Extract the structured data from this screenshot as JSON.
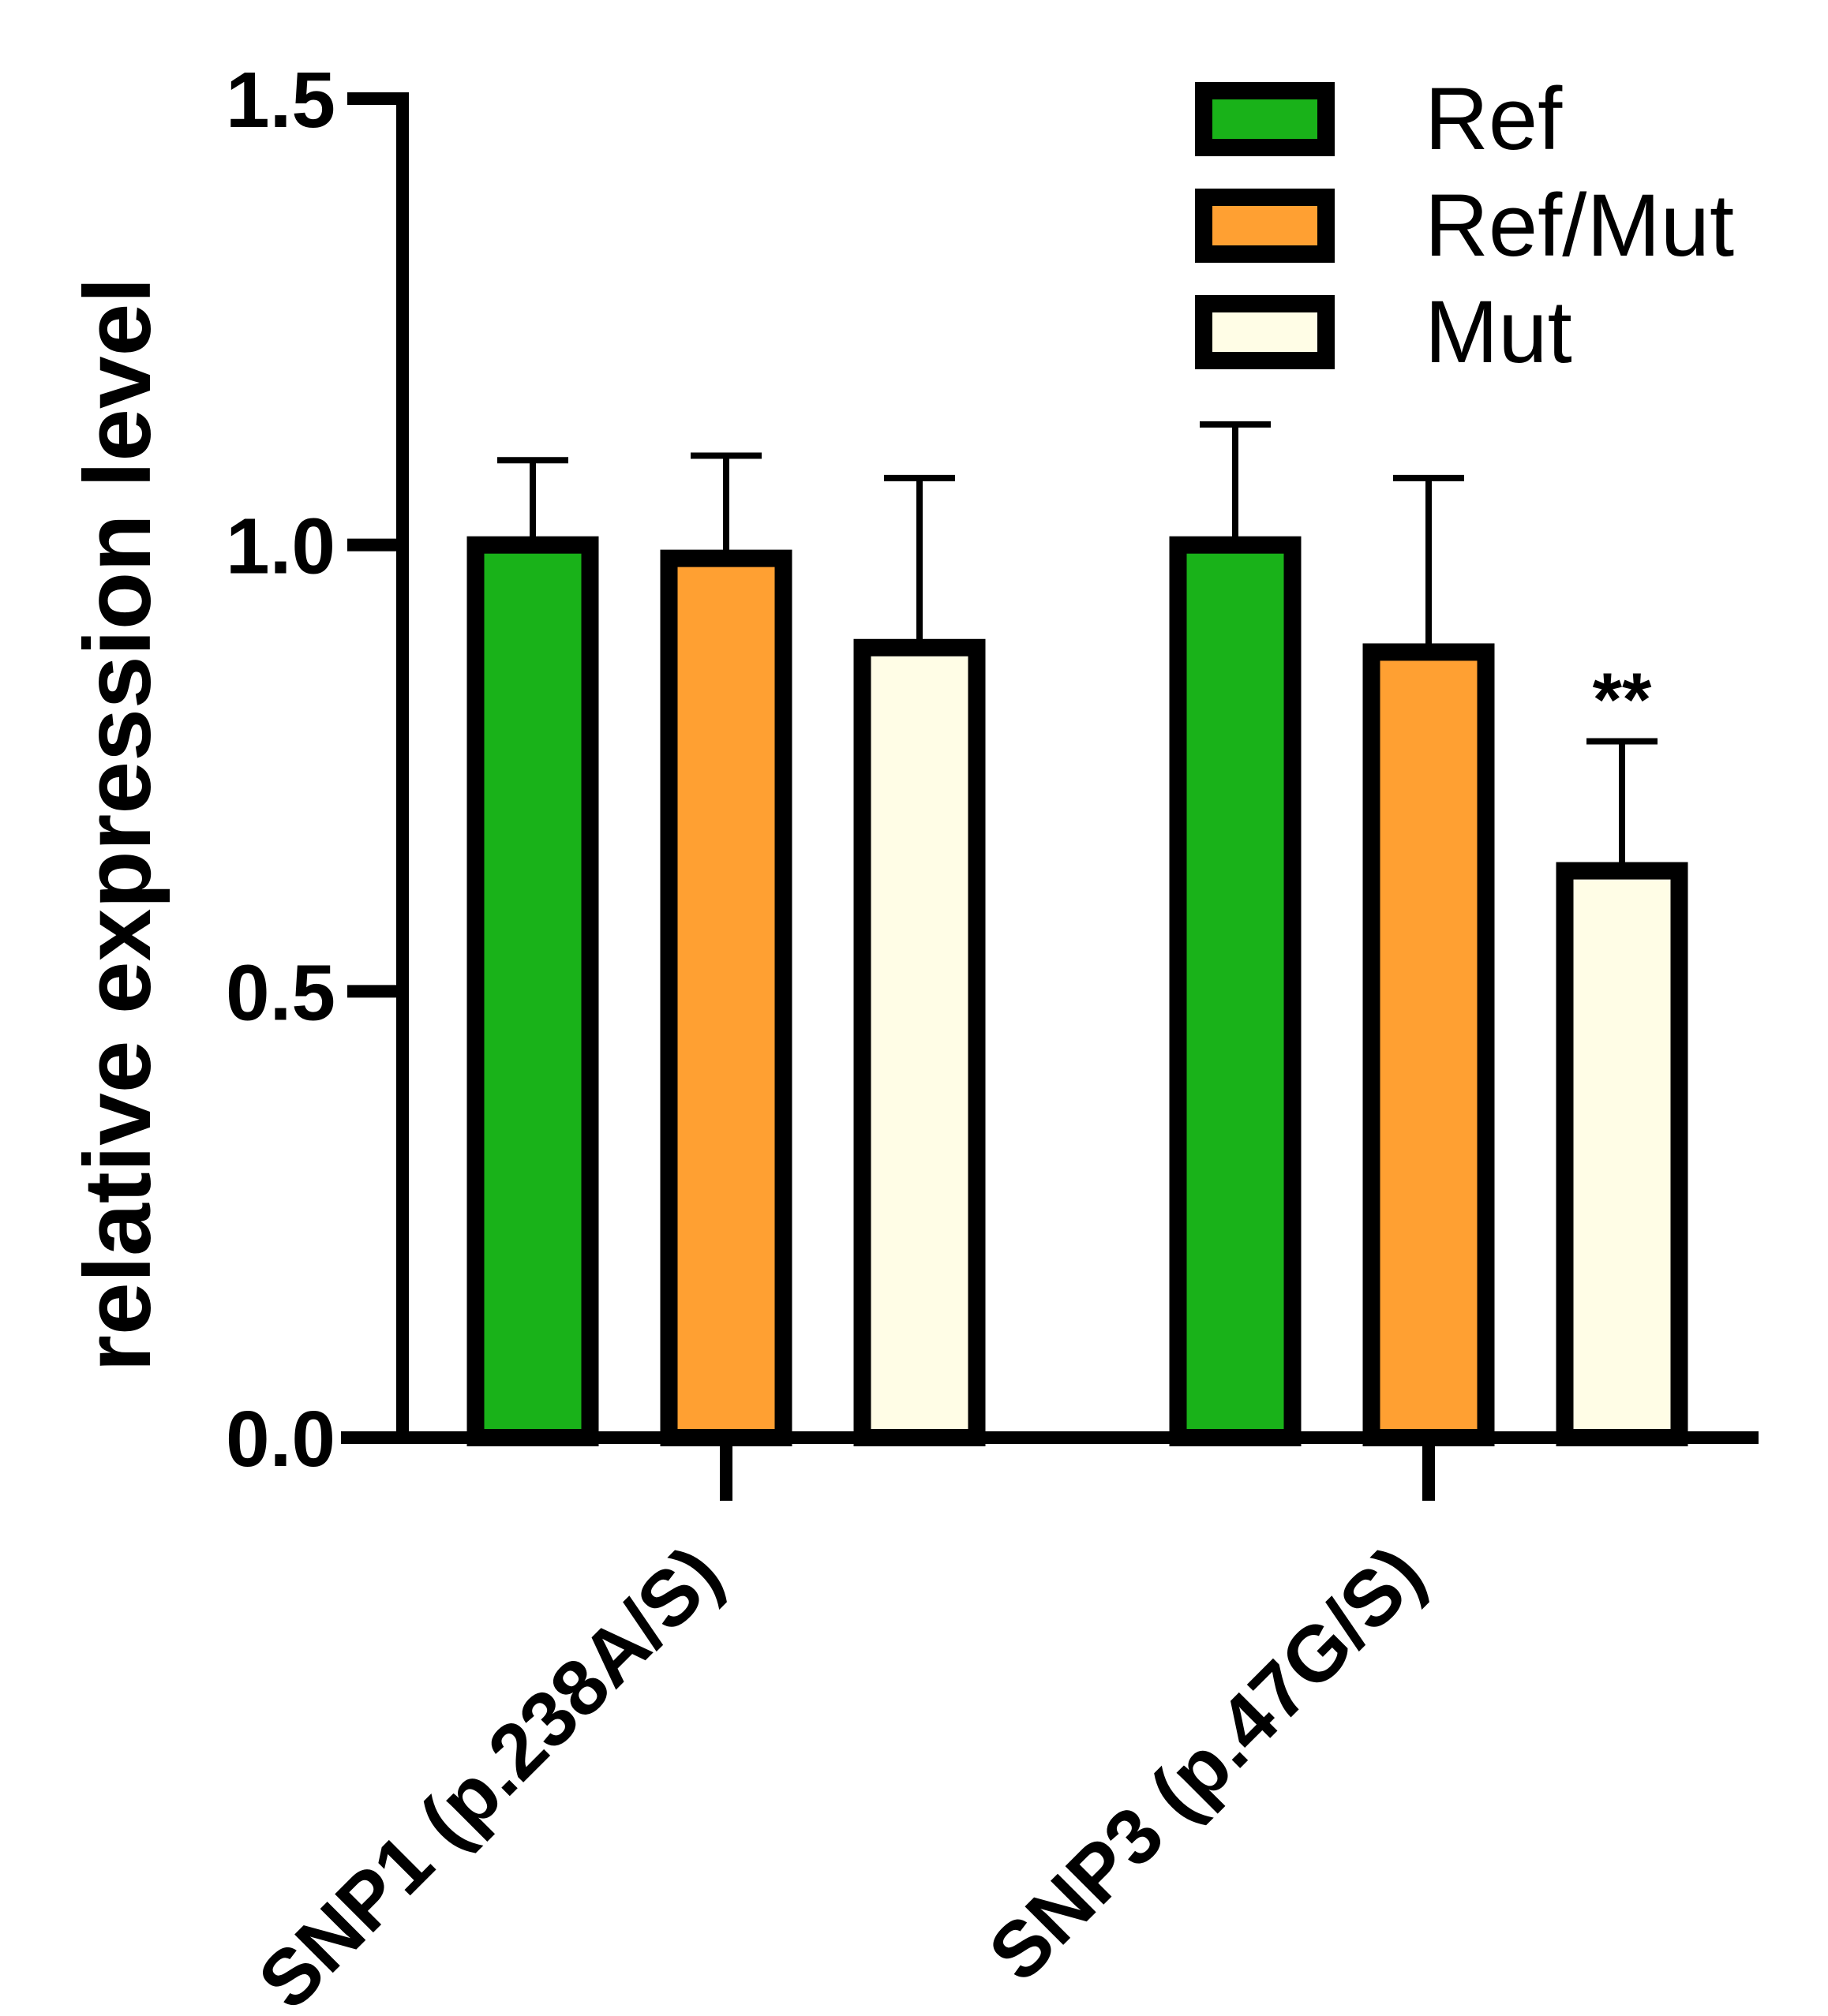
{
  "chart_data": {
    "type": "bar",
    "ylabel": "relative expression level",
    "xlabel": "",
    "ylim": [
      0,
      1.5
    ],
    "yticks": [
      "0.0",
      "0.5",
      "1.0",
      "1.5"
    ],
    "categories": [
      "SNP1 (p.238A/S)",
      "SNP3 (p.47G/S)"
    ],
    "series": [
      {
        "name": "Ref",
        "color": "#19B219",
        "values": [
          1.0,
          1.0
        ],
        "errors": [
          0.095,
          0.135
        ]
      },
      {
        "name": "Ref/Mut",
        "color": "#FFA032",
        "values": [
          0.985,
          0.88
        ],
        "errors": [
          0.115,
          0.195
        ]
      },
      {
        "name": "Mut",
        "color": "#FFFDE6",
        "values": [
          0.885,
          0.635
        ],
        "errors": [
          0.19,
          0.145
        ]
      }
    ],
    "annotations": [
      {
        "category_index": 1,
        "series_index": 2,
        "text": "**"
      }
    ],
    "legend_placement": "top-right",
    "grid": false
  }
}
